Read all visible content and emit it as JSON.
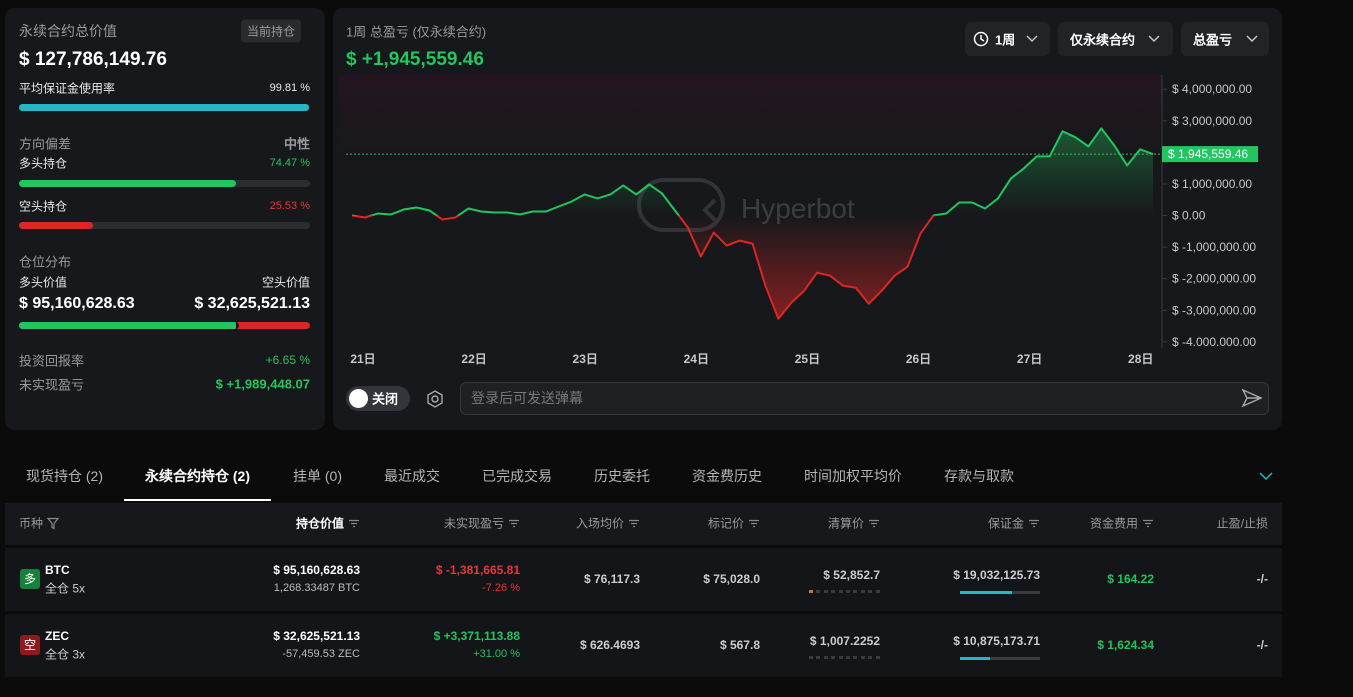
{
  "summary": {
    "title": "永续合约总价值",
    "badge": "当前持仓",
    "total": "$ 127,786,149.76",
    "margin_usage": {
      "label": "平均保证金使用率",
      "value": 99.81,
      "value_label": "99.81 %"
    },
    "bias": {
      "label": "方向偏差",
      "value": "中性",
      "long": {
        "label": "多头持仓",
        "value": 74.47,
        "value_label": "74.47 %"
      },
      "short": {
        "label": "空头持仓",
        "value": 25.53,
        "value_label": "25.53 %"
      }
    },
    "distribution": {
      "label": "仓位分布",
      "long_label": "多头价值",
      "short_label": "空头价值",
      "long_value": "$ 95,160,628.63",
      "short_value": "$ 32,625,521.13"
    },
    "roi": {
      "label": "投资回报率",
      "value": "+6.65 %"
    },
    "unrealized": {
      "label": "未实现盈亏",
      "value": "$ +1,989,448.07"
    }
  },
  "chart_data": {
    "type": "line",
    "title": "1周 总盈亏 (仅永续合约)",
    "subtitle": "$ +1,945,559.46",
    "watermark": "Hyperbot",
    "filters": [
      "1周",
      "仅永续合约",
      "总盈亏"
    ],
    "x_labels": [
      "21日",
      "22日",
      "23日",
      "24日",
      "25日",
      "26日",
      "27日",
      "28日"
    ],
    "values": [
      0,
      -63000,
      63000,
      32000,
      190000,
      254000,
      159000,
      -127000,
      -63000,
      222000,
      127000,
      95000,
      95000,
      32000,
      127000,
      127000,
      286000,
      444000,
      667000,
      540000,
      667000,
      952000,
      667000,
      984000,
      698000,
      159000,
      -381000,
      -1302000,
      -540000,
      -952000,
      -794000,
      -889000,
      -2222000,
      -3270000,
      -2762000,
      -2381000,
      -1810000,
      -1905000,
      -2222000,
      -2286000,
      -2794000,
      -2381000,
      -1905000,
      -1619000,
      -571000,
      0,
      63000,
      413000,
      413000,
      222000,
      540000,
      1175000,
      1492000,
      1873000,
      1873000,
      2667000,
      2476000,
      2190000,
      2762000,
      2222000,
      1587000,
      2095000,
      1945559.46
    ],
    "color_up": "#22c55e",
    "color_down": "#dc2626",
    "ylim": [
      -4100000,
      4450000
    ],
    "yticks": [
      {
        "value": 4000000,
        "label": "$ 4,000,000.00"
      },
      {
        "value": 3000000,
        "label": "$ 3,000,000.00"
      },
      {
        "value": 2000000,
        "label": "$ 2,000,000.00"
      },
      {
        "value": 1000000,
        "label": "$ 1,000,000.00"
      },
      {
        "value": 0,
        "label": "$ 0.00"
      },
      {
        "value": -1000000,
        "label": "$ -1,000,000.00"
      },
      {
        "value": -2000000,
        "label": "$ -2,000,000.00"
      },
      {
        "value": -3000000,
        "label": "$ -3,000,000.00"
      },
      {
        "value": -4000000,
        "label": "$ -4.000.000.00"
      }
    ],
    "current": {
      "value": 1945559.46,
      "label": "$ 1,945,559.46"
    }
  },
  "danmaku": {
    "toggle": "关闭",
    "placeholder": "登录后可发送弹幕"
  },
  "tabs": [
    "现货持仓 (2)",
    "永续合约持仓 (2)",
    "挂单 (0)",
    "最近成交",
    "已完成交易",
    "历史委托",
    "资金费历史",
    "时间加权平均价",
    "存款与取款"
  ],
  "table": {
    "columns": [
      "币种",
      "持仓价值",
      "未实现盈亏",
      "入场均价",
      "标记价",
      "清算价",
      "保证金",
      "资金费用",
      "止盈/止损"
    ],
    "rows": [
      {
        "side": "多",
        "coin": "BTC",
        "mode": "全仓 5x",
        "value": "$ 95,160,628.63",
        "size": "1,268.33487 BTC",
        "pnl": "$ -1,381,665.81",
        "pnl_pct": "-7.26 %",
        "entry": "$ 76,117.3",
        "mark": "$ 75,028.0",
        "liq": "$ 52,852.7",
        "margin": "$ 19,032,125.73",
        "funding": "$ 164.22",
        "tpsl": "-/-",
        "margin_ratio": 65,
        "liq_risk": 1
      },
      {
        "side": "空",
        "coin": "ZEC",
        "mode": "全仓 3x",
        "value": "$ 32,625,521.13",
        "size": "-57,459.53 ZEC",
        "pnl": "$ +3,371,113.88",
        "pnl_pct": "+31.00 %",
        "entry": "$ 626.4693",
        "mark": "$ 567.8",
        "liq": "$ 1,007.2252",
        "margin": "$ 10,875,173.71",
        "funding": "$ 1,624.34",
        "tpsl": "-/-",
        "margin_ratio": 37,
        "liq_risk": 0
      }
    ]
  }
}
